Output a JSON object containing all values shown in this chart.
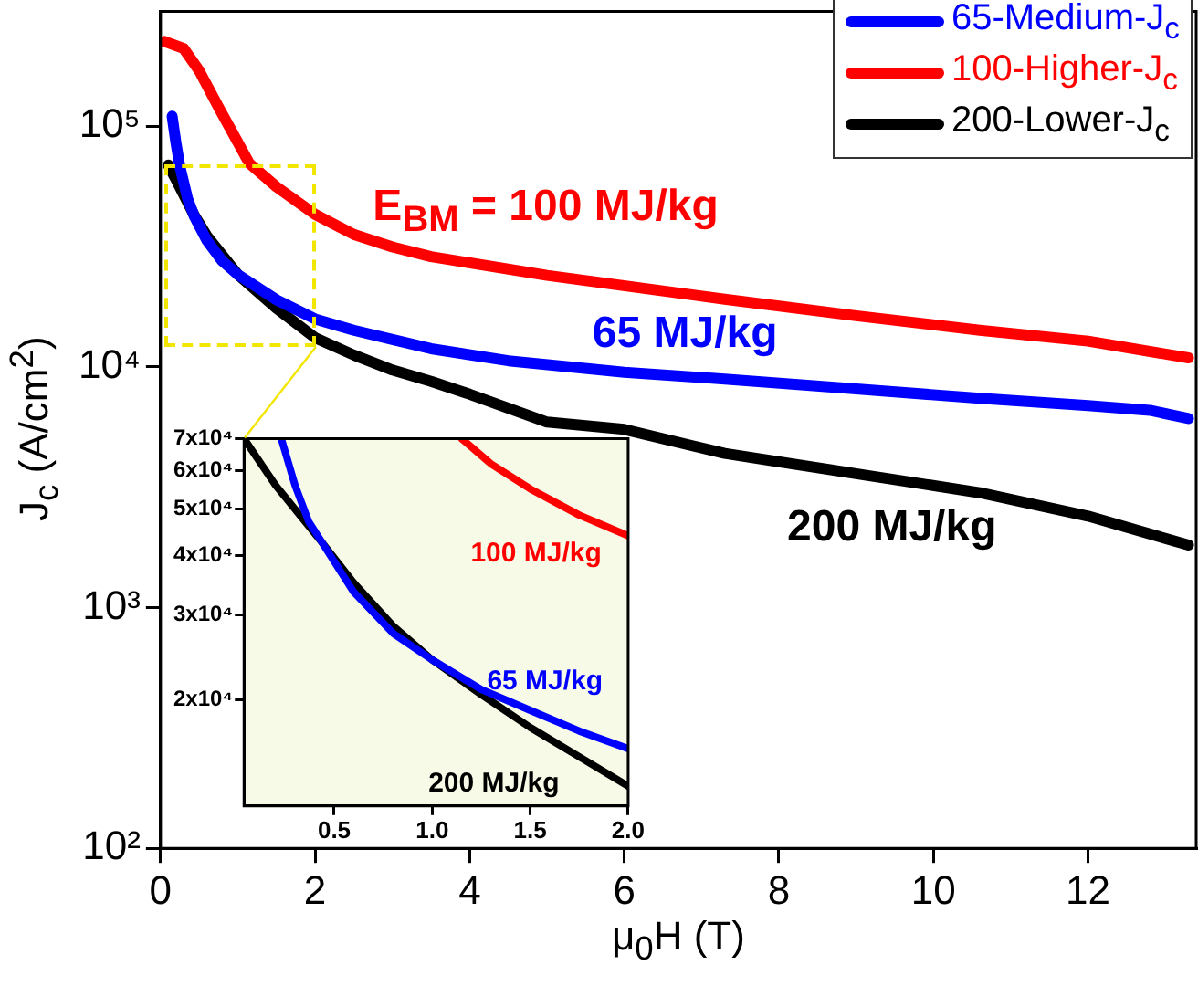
{
  "chart_data": [
    {
      "type": "line",
      "xlabel": "μ$_{0}$H (T)",
      "ylabel": "J$_{c}$ (A/cm$^{2}$)",
      "log": "y",
      "xlim": [
        0,
        13.4
      ],
      "ylim": [
        100,
        300000
      ],
      "xticks": [
        0,
        2,
        4,
        6,
        8,
        10,
        12
      ],
      "yticks": [
        {
          "value": 100,
          "label": "10²"
        },
        {
          "value": 1000,
          "label": "10³"
        },
        {
          "value": 10000,
          "label": "10⁴"
        },
        {
          "value": 100000,
          "label": "10⁵"
        }
      ],
      "grid": false,
      "legend": "top right",
      "marker": "none",
      "line_style": "solid",
      "series": [
        {
          "name": "65-Medium-J$_{c}$",
          "color": "#0000ff",
          "x": [
            0.15,
            0.2,
            0.25,
            0.35,
            0.44,
            0.6,
            0.8,
            1.0,
            1.5,
            2,
            2.5,
            3,
            3.5,
            4.5,
            6,
            7.3,
            9,
            10.6,
            12,
            12.8,
            13.3
          ],
          "values": [
            110000,
            85000,
            68000,
            50000,
            42000,
            33500,
            27500,
            24200,
            19000,
            15800,
            14200,
            13000,
            11900,
            10600,
            9500,
            8900,
            8100,
            7400,
            6900,
            6600,
            6100
          ]
        },
        {
          "name": "100-Higher-J$_{c}$",
          "color": "#ff0000",
          "x": [
            0.05,
            0.3,
            0.5,
            0.75,
            1.15,
            1.5,
            2,
            2.5,
            3,
            3.5,
            5,
            7.3,
            9,
            10.6,
            12,
            13.3
          ],
          "values": [
            225000,
            210000,
            170000,
            120000,
            70000,
            56000,
            43000,
            35500,
            31500,
            28700,
            24000,
            19100,
            16300,
            14200,
            12800,
            10900
          ]
        },
        {
          "name": "200-Lower-J$_{c}$",
          "color": "#000000",
          "x": [
            0.1,
            0.2,
            0.44,
            0.6,
            1.0,
            1.5,
            2,
            2.5,
            3,
            3.5,
            4,
            5,
            6,
            7.3,
            9,
            10.6,
            12,
            13.3
          ],
          "values": [
            69000,
            60000,
            42400,
            35000,
            24200,
            17500,
            13200,
            11200,
            9700,
            8700,
            7700,
            5900,
            5500,
            4370,
            3600,
            3000,
            2400,
            1820
          ]
        }
      ],
      "annotations": [
        "65 MJ/kg",
        "E$_{BM}$ = 100 MJ/kg",
        "200 MJ/kg"
      ]
    },
    {
      "type": "line",
      "log": "y",
      "xlim": [
        0.04,
        2
      ],
      "ylim": [
        12000,
        70000
      ],
      "xticks": [
        0.5,
        {
          "value": 1,
          "label": "1.0"
        },
        1.5,
        {
          "value": 2,
          "label": "2.0"
        }
      ],
      "yticks": [
        {
          "value": 20000,
          "label": "2x10⁴"
        },
        {
          "value": 30000,
          "label": "3x10⁴"
        },
        {
          "value": 40000,
          "label": "4x10⁴"
        },
        {
          "value": 50000,
          "label": "5x10⁴"
        },
        {
          "value": 60000,
          "label": "6x10⁴"
        },
        {
          "value": 70000,
          "label": "7x10⁴"
        }
      ],
      "grid": false,
      "marker": "none",
      "line_style": "solid",
      "series": [
        {
          "color": "#0000ff",
          "x": [
            0.23,
            0.3,
            0.37,
            0.44,
            0.6,
            0.8,
            1.0,
            1.25,
            1.5,
            1.75,
            2
          ],
          "values": [
            70000,
            56000,
            47000,
            42400,
            33500,
            27500,
            24200,
            21000,
            19000,
            17200,
            15800
          ]
        },
        {
          "color": "#ff0000",
          "x": [
            1.15,
            1.3,
            1.5,
            1.75,
            2
          ],
          "values": [
            70000,
            62000,
            55000,
            48500,
            43900
          ]
        },
        {
          "color": "#000000",
          "x": [
            0.04,
            0.2,
            0.44,
            0.6,
            0.8,
            1.0,
            1.25,
            1.5,
            1.75,
            2
          ],
          "values": [
            70000,
            56000,
            42400,
            35000,
            28500,
            24200,
            20500,
            17500,
            15200,
            13200
          ]
        }
      ],
      "annotations": [
        {
          "text": "65 MJ/kg",
          "x": 1.28,
          "y": 21800
        },
        "100 MJ/kg",
        "200 MJ/kg"
      ]
    }
  ]
}
